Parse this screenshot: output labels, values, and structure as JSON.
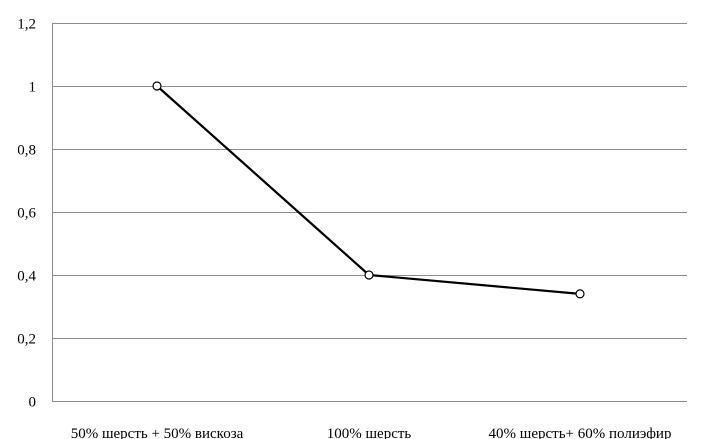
{
  "chart_data": {
    "type": "line",
    "title": "",
    "xlabel": "",
    "ylabel": "",
    "categories": [
      "50% шерсть + 50% вискоза",
      "100% шерсть",
      "40% шерсть+ 60% полиэфир"
    ],
    "series": [
      {
        "values": [
          1,
          0.4,
          0.34
        ]
      }
    ],
    "ylim": [
      0,
      1.2
    ],
    "yticks": [
      0,
      0.2,
      0.4,
      0.6,
      0.8,
      1,
      1.2
    ],
    "ytick_labels": [
      "0",
      "0,2",
      "0,4",
      "0,6",
      "0,8",
      "1",
      "1,2"
    ],
    "grid": true,
    "legend": "none",
    "marker": "hollow-circle",
    "colors": {
      "line": "#000000",
      "grid": "#8c8c8c",
      "marker_fill": "#ffffff"
    }
  }
}
